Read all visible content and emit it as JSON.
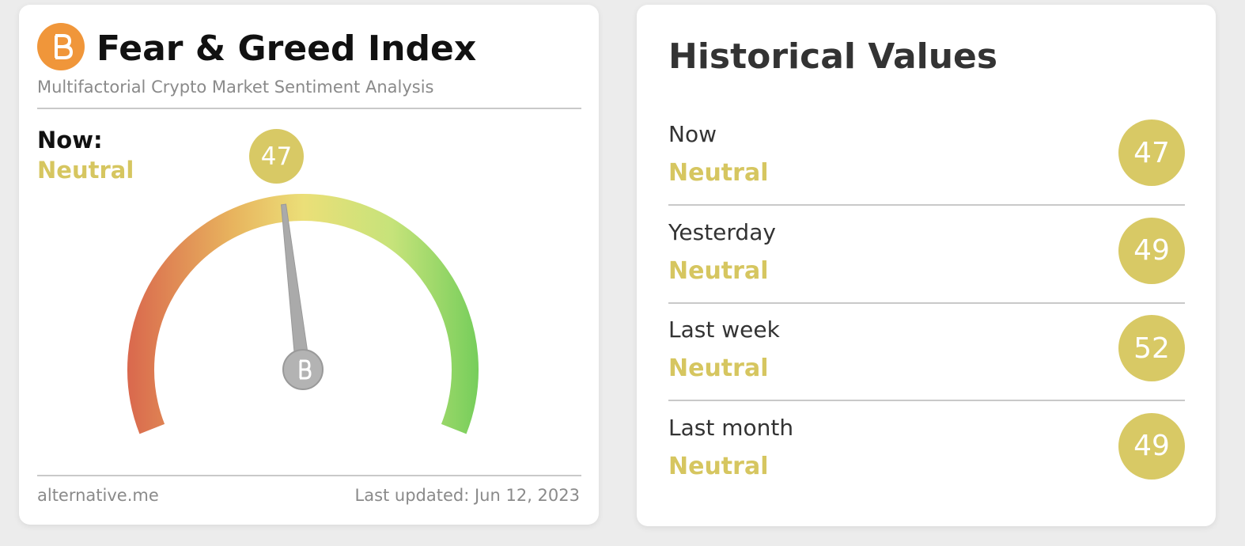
{
  "header": {
    "title": "Fear & Greed Index",
    "subtitle": "Multifactorial Crypto Market Sentiment Analysis"
  },
  "gauge": {
    "label": "Now:",
    "classification": "Neutral",
    "value": 47
  },
  "footer": {
    "source": "alternative.me",
    "updated": "Last updated: Jun 12, 2023"
  },
  "historical": {
    "title": "Historical Values",
    "rows": [
      {
        "period": "Now",
        "classification": "Neutral",
        "value": 47
      },
      {
        "period": "Yesterday",
        "classification": "Neutral",
        "value": 49
      },
      {
        "period": "Last week",
        "classification": "Neutral",
        "value": 52
      },
      {
        "period": "Last month",
        "classification": "Neutral",
        "value": 49
      }
    ]
  }
}
